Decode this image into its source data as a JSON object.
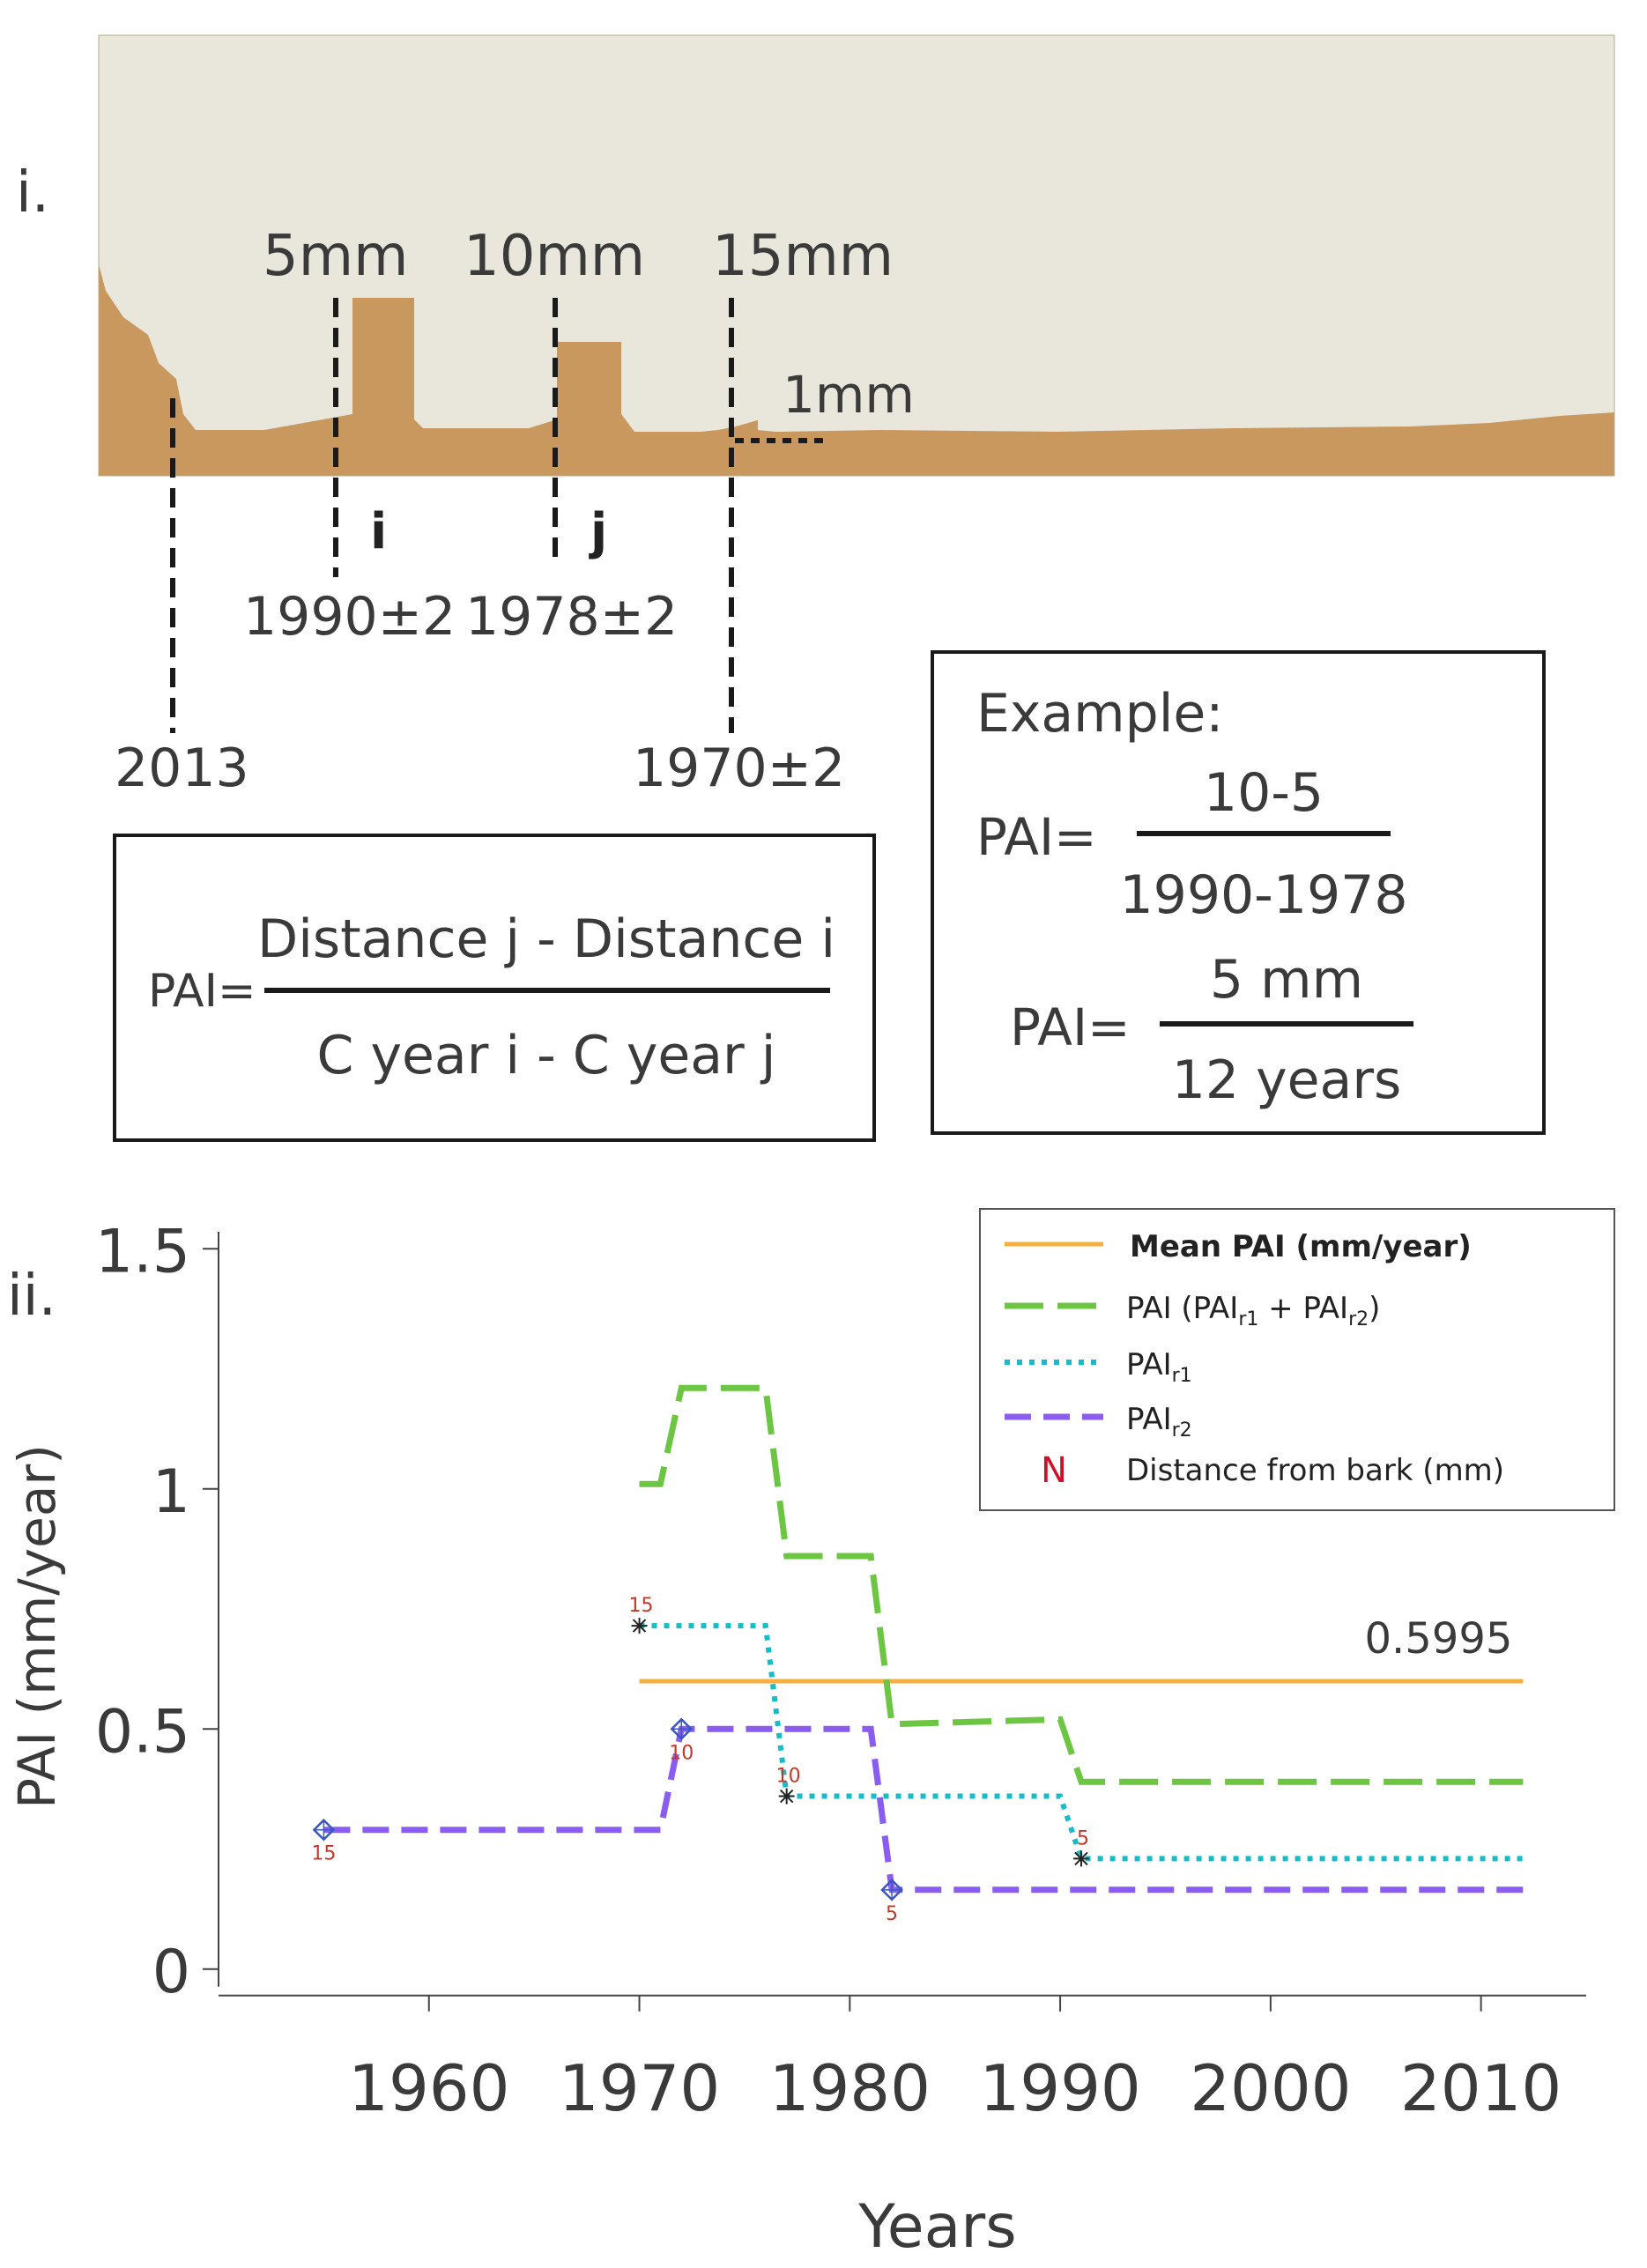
{
  "panel_i": {
    "label": "i.",
    "photo": {
      "wood_color": "#c9985e",
      "paper_color": "#e9e6dc"
    },
    "mark_labels": [
      "5mm",
      "10mm",
      "15mm"
    ],
    "scale_label": "1mm",
    "ring_labels": {
      "i": "i",
      "j": "j"
    },
    "dates": {
      "bark": "2013",
      "d5": "1990±2",
      "d10": "1978±2",
      "d15": "1970±2"
    },
    "formula": {
      "lhs": "PAI=",
      "numerator": "Distance j - Distance i",
      "denominator": "C year i - C year j"
    },
    "example": {
      "title": "Example:",
      "line1": {
        "lhs": "PAI=",
        "numerator": "10-5",
        "denominator": "1990-1978"
      },
      "line2": {
        "lhs": "PAI=",
        "numerator": "5 mm",
        "denominator": "12 years"
      }
    }
  },
  "panel_ii": {
    "label": "ii."
  },
  "chart_data": {
    "type": "line",
    "xlabel": "Years",
    "ylabel": "PAI (mm/year)",
    "xlim": [
      1950,
      2015
    ],
    "ylim": [
      -0.05,
      1.55
    ],
    "x_ticks": [
      1960,
      1970,
      1980,
      1990,
      2000,
      2010
    ],
    "y_ticks": [
      0,
      0.5,
      1,
      1.5
    ],
    "y_tick_labels": [
      "0",
      "0.5",
      "1",
      "1.5"
    ],
    "legend": {
      "placement": "top-right",
      "entries": [
        {
          "key": "mean",
          "label": "Mean PAI (mm/year)",
          "bold": true
        },
        {
          "key": "pai",
          "label": "PAI (PAI",
          "sub1": "r1",
          "mid": " + PAI",
          "sub2": "r2",
          "end": ")"
        },
        {
          "key": "r1",
          "label": "PAI",
          "sub1": "r1"
        },
        {
          "key": "r2",
          "label": "PAI",
          "sub1": "r2"
        },
        {
          "key": "n",
          "symbol": "N",
          "label": "Distance from bark (mm)"
        }
      ]
    },
    "mean_label": "0.5995",
    "series": [
      {
        "key": "mean",
        "name": "Mean PAI (mm/year)",
        "color": "#f5b041",
        "style": "solid",
        "points": [
          [
            1970,
            0.5995
          ],
          [
            2012,
            0.5995
          ]
        ]
      },
      {
        "key": "pai",
        "name": "PAI (PAIr1 + PAIr2)",
        "color": "#6cc644",
        "style": "longdash",
        "points": [
          [
            1970,
            1.01
          ],
          [
            1971,
            1.01
          ],
          [
            1972,
            1.21
          ],
          [
            1976,
            1.21
          ],
          [
            1977,
            0.86
          ],
          [
            1981,
            0.86
          ],
          [
            1982,
            0.51
          ],
          [
            1990,
            0.52
          ],
          [
            1991,
            0.39
          ],
          [
            2012,
            0.39
          ]
        ]
      },
      {
        "key": "r1",
        "name": "PAIr1",
        "color": "#17bcc8",
        "style": "dotted",
        "points": [
          [
            1970,
            0.715
          ],
          [
            1976,
            0.715
          ],
          [
            1977,
            0.36
          ],
          [
            1990,
            0.36
          ],
          [
            1991,
            0.23
          ],
          [
            2012,
            0.23
          ]
        ]
      },
      {
        "key": "r2",
        "name": "PAIr2",
        "color": "#8a5cf0",
        "style": "dashed",
        "points": [
          [
            1955,
            0.29
          ],
          [
            1971,
            0.29
          ],
          [
            1972,
            0.5
          ],
          [
            1981,
            0.5
          ],
          [
            1982,
            0.165
          ],
          [
            2012,
            0.165
          ]
        ]
      }
    ],
    "markers": [
      {
        "series": "r1",
        "symbol": "star",
        "x": 1970,
        "y": 0.715,
        "label": "15",
        "label_pos": "above"
      },
      {
        "series": "r1",
        "symbol": "star",
        "x": 1977,
        "y": 0.36,
        "label": "10",
        "label_pos": "above"
      },
      {
        "series": "r1",
        "symbol": "star",
        "x": 1991,
        "y": 0.23,
        "label": "5",
        "label_pos": "above"
      },
      {
        "series": "r2",
        "symbol": "diamond",
        "x": 1955,
        "y": 0.29,
        "label": "15",
        "label_pos": "below"
      },
      {
        "series": "r2",
        "symbol": "diamond",
        "x": 1972,
        "y": 0.5,
        "label": "10",
        "label_pos": "below"
      },
      {
        "series": "r2",
        "symbol": "diamond",
        "x": 1982,
        "y": 0.165,
        "label": "5",
        "label_pos": "below"
      }
    ],
    "marker_label_color": "#c0392b"
  }
}
